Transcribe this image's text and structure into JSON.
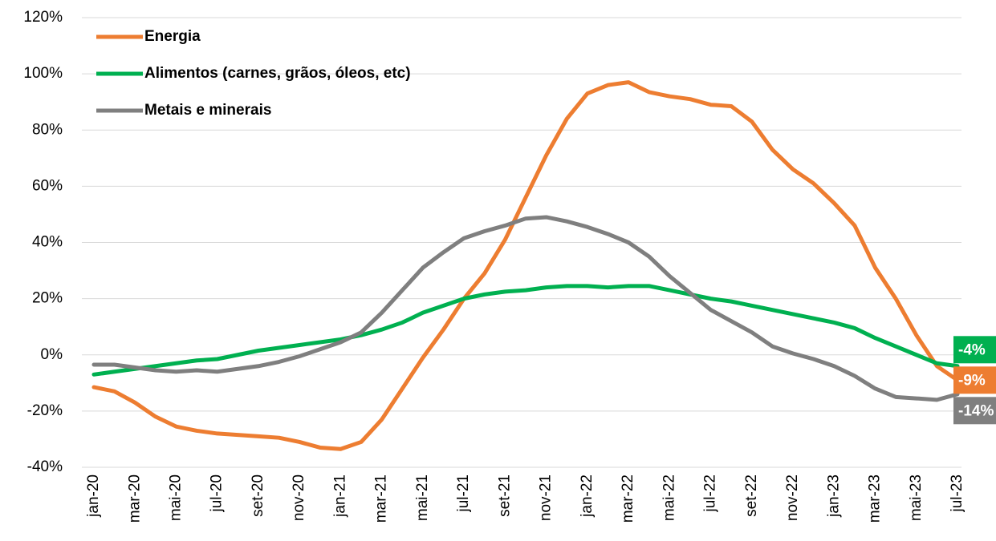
{
  "chart_data": {
    "type": "line",
    "categories": [
      "jan-20",
      null,
      "mar-20",
      null,
      "mai-20",
      null,
      "jul-20",
      null,
      "set-20",
      null,
      "nov-20",
      null,
      "jan-21",
      null,
      "mar-21",
      null,
      "mai-21",
      null,
      "jul-21",
      null,
      "set-21",
      null,
      "nov-21",
      null,
      "jan-22",
      null,
      "mar-22",
      null,
      "mai-22",
      null,
      "jul-22",
      null,
      "set-22",
      null,
      "nov-22",
      null,
      "jan-23",
      null,
      "mar-23",
      null,
      "mai-23",
      null,
      "jul-23"
    ],
    "series": [
      {
        "name": "Energia",
        "color": "#ED7D31",
        "values": [
          -11.5,
          -13,
          -17,
          -22,
          -25.5,
          -27,
          -28,
          -28.5,
          -29,
          -29.5,
          -31,
          -33,
          -33.5,
          -31,
          -23,
          -12,
          -1,
          9,
          20,
          29,
          41,
          56,
          71,
          84,
          93,
          96,
          97,
          93.5,
          92,
          91,
          89,
          88.5,
          83,
          73,
          66,
          61,
          54,
          46,
          31,
          20,
          7,
          -4,
          -9
        ],
        "value_labels": [
          null,
          null,
          null,
          null,
          null,
          null,
          null,
          null,
          null,
          null,
          null,
          null,
          null,
          null,
          null,
          null,
          null,
          null,
          null,
          null,
          null,
          null,
          null,
          null,
          null,
          null,
          null,
          null,
          null,
          null,
          null,
          null,
          null,
          null,
          null,
          null,
          null,
          null,
          null,
          null,
          null,
          null,
          "-9%"
        ]
      },
      {
        "name": "Alimentos (carnes, grãos, óleos, etc)",
        "color": "#00B050",
        "values": [
          -7,
          -6,
          -5,
          -4,
          -3,
          -2,
          -1.5,
          0,
          1.5,
          2.5,
          3.5,
          4.5,
          5.5,
          7,
          9,
          11.5,
          15,
          17.5,
          20,
          21.5,
          22.5,
          23,
          24,
          24.5,
          24.5,
          24,
          24.5,
          24.5,
          23,
          21.5,
          20,
          19,
          17.5,
          16,
          14.5,
          13,
          11.5,
          9.5,
          6,
          3,
          0,
          -3,
          -4
        ],
        "value_labels": [
          null,
          null,
          null,
          null,
          null,
          null,
          null,
          null,
          null,
          null,
          null,
          null,
          null,
          null,
          null,
          null,
          null,
          null,
          null,
          null,
          null,
          null,
          null,
          null,
          null,
          null,
          null,
          null,
          null,
          null,
          null,
          null,
          null,
          null,
          null,
          null,
          null,
          null,
          null,
          null,
          null,
          null,
          "-4%"
        ]
      },
      {
        "name": "Metais e minerais",
        "color": "#7F7F7F",
        "values": [
          -3.5,
          -3.5,
          -4.5,
          -5.5,
          -6,
          -5.5,
          -6,
          -5,
          -4,
          -2.5,
          -0.5,
          2,
          4.5,
          8,
          15,
          23,
          31,
          36.5,
          41.5,
          44,
          46,
          48.5,
          49,
          47.5,
          45.5,
          43,
          40,
          35,
          28,
          22,
          16,
          12,
          8,
          3,
          0.5,
          -1.5,
          -4,
          -7.5,
          -12,
          -15,
          -15.5,
          -16,
          -14
        ],
        "value_labels": [
          null,
          null,
          null,
          null,
          null,
          null,
          null,
          null,
          null,
          null,
          null,
          null,
          null,
          null,
          null,
          null,
          null,
          null,
          null,
          null,
          null,
          null,
          null,
          null,
          null,
          null,
          null,
          null,
          null,
          null,
          null,
          null,
          null,
          null,
          null,
          null,
          null,
          null,
          null,
          null,
          null,
          null,
          "-14%"
        ]
      }
    ],
    "ylim": [
      -40,
      120
    ],
    "yticks": [
      {
        "value": -40,
        "label": "-40%"
      },
      {
        "value": -20,
        "label": "-20%"
      },
      {
        "value": 0,
        "label": "0%"
      },
      {
        "value": 20,
        "label": "20%"
      },
      {
        "value": 40,
        "label": "40%"
      },
      {
        "value": 60,
        "label": "60%"
      },
      {
        "value": 80,
        "label": "80%"
      },
      {
        "value": 100,
        "label": "100%"
      },
      {
        "value": 120,
        "label": "120%"
      }
    ],
    "grid": true,
    "legend": "top-left"
  }
}
